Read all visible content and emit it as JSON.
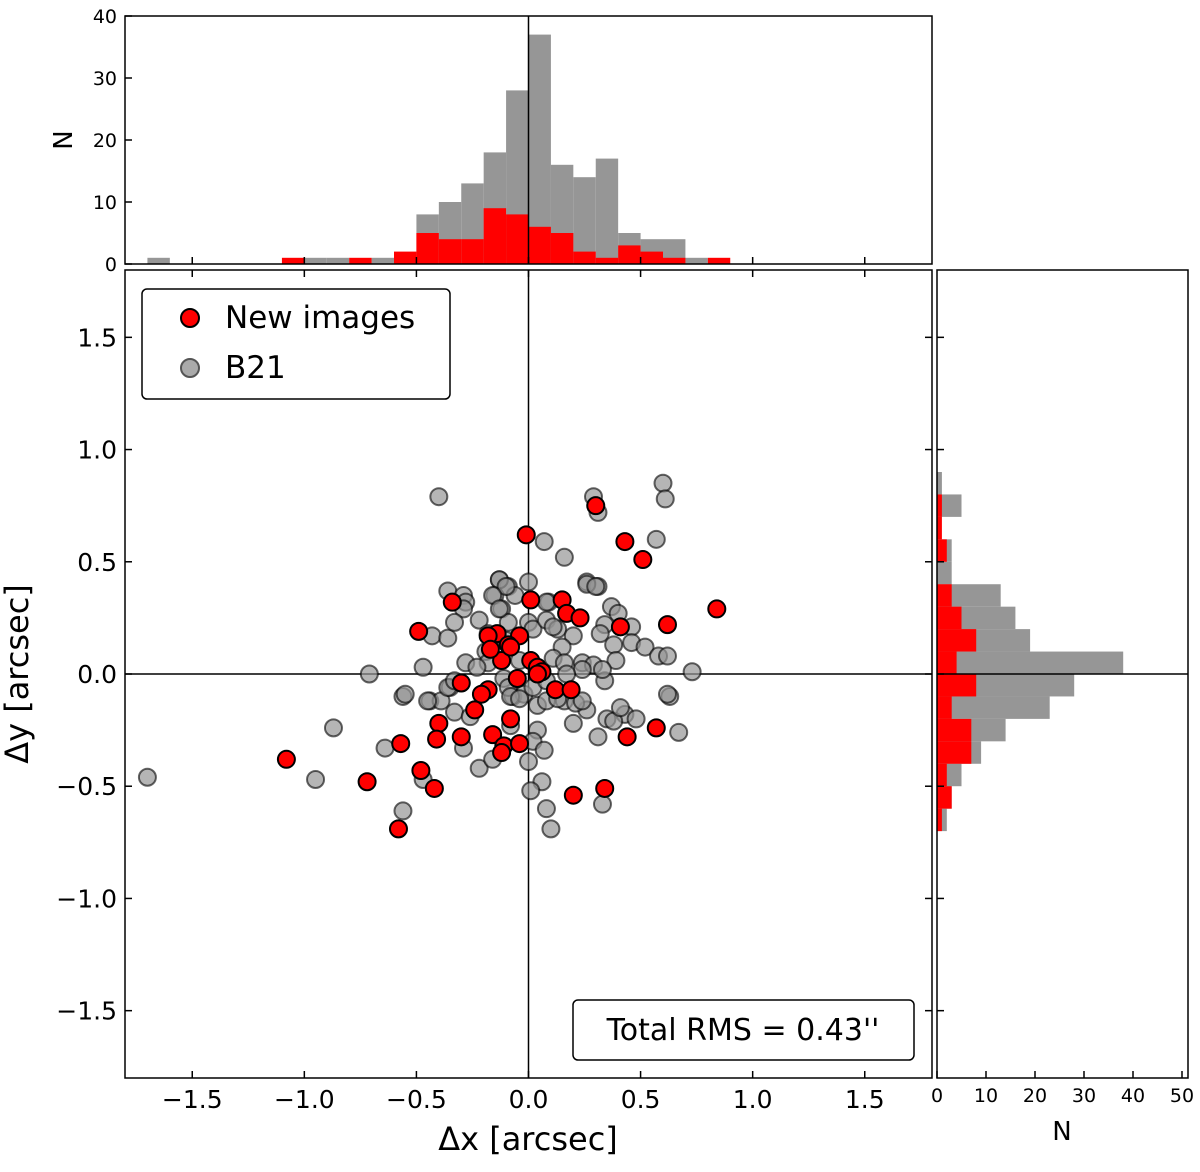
{
  "chart_data": [
    {
      "type": "scatter",
      "id": "main",
      "xlabel": "Δx [arcsec]",
      "ylabel": "Δy [arcsec]",
      "xlim": [
        -1.8,
        1.8
      ],
      "ylim": [
        -1.8,
        1.8
      ],
      "xticks": [
        -1.5,
        -1.0,
        -0.5,
        0.0,
        0.5,
        1.0,
        1.5
      ],
      "yticks": [
        -1.5,
        -1.0,
        -0.5,
        0.0,
        0.5,
        1.0,
        1.5
      ],
      "xtick_labels": [
        "−1.5",
        "−1.0",
        "−0.5",
        "0.0",
        "0.5",
        "1.0",
        "1.5"
      ],
      "ytick_labels": [
        "−1.5",
        "−1.0",
        "−0.5",
        "0.0",
        "0.5",
        "1.0",
        "1.5"
      ],
      "legend_position": "top-left",
      "annotation": "Total RMS = 0.43''",
      "series": [
        {
          "name": "B21",
          "color": "#999999",
          "points": [
            [
              -0.56,
              -0.1
            ],
            [
              -0.44,
              -0.12
            ],
            [
              -0.39,
              -0.12
            ],
            [
              -0.35,
              -0.06
            ],
            [
              -0.87,
              -0.24
            ],
            [
              -0.64,
              -0.33
            ],
            [
              -0.95,
              -0.47
            ],
            [
              -0.47,
              -0.47
            ],
            [
              -0.56,
              -0.61
            ],
            [
              -0.29,
              -0.33
            ],
            [
              -0.22,
              -0.42
            ],
            [
              -0.16,
              -0.38
            ],
            [
              -0.33,
              -0.17
            ],
            [
              -0.26,
              -0.19
            ],
            [
              -0.08,
              -0.23
            ],
            [
              -0.07,
              -0.1
            ],
            [
              -0.02,
              -0.09
            ],
            [
              0.04,
              -0.14
            ],
            [
              0.04,
              -0.25
            ],
            [
              0.02,
              -0.3
            ],
            [
              0.07,
              -0.34
            ],
            [
              0.0,
              -0.39
            ],
            [
              0.06,
              -0.48
            ],
            [
              0.01,
              -0.52
            ],
            [
              0.08,
              -0.6
            ],
            [
              0.1,
              -0.69
            ],
            [
              0.08,
              -0.12
            ],
            [
              0.2,
              -0.22
            ],
            [
              0.26,
              -0.16
            ],
            [
              0.31,
              -0.28
            ],
            [
              0.35,
              -0.2
            ],
            [
              0.43,
              -0.18
            ],
            [
              0.48,
              -0.2
            ],
            [
              0.38,
              -0.21
            ],
            [
              0.63,
              -0.1
            ],
            [
              0.67,
              -0.26
            ],
            [
              0.33,
              -0.58
            ],
            [
              0.34,
              -0.03
            ],
            [
              0.16,
              -0.12
            ],
            [
              0.21,
              -0.13
            ],
            [
              -0.36,
              0.37
            ],
            [
              -0.29,
              0.35
            ],
            [
              -0.28,
              0.32
            ],
            [
              -0.29,
              0.29
            ],
            [
              -0.43,
              0.17
            ],
            [
              -0.36,
              0.16
            ],
            [
              -0.33,
              0.23
            ],
            [
              -0.22,
              0.24
            ],
            [
              -0.13,
              0.42
            ],
            [
              -0.09,
              0.39
            ],
            [
              -0.15,
              0.35
            ],
            [
              -0.06,
              0.35
            ],
            [
              0.0,
              0.41
            ],
            [
              -0.12,
              0.29
            ],
            [
              -0.09,
              0.23
            ],
            [
              -0.18,
              0.18
            ],
            [
              0.0,
              0.23
            ],
            [
              0.02,
              0.2
            ],
            [
              0.08,
              0.24
            ],
            [
              0.09,
              0.32
            ],
            [
              0.13,
              0.2
            ],
            [
              0.2,
              0.17
            ],
            [
              0.26,
              0.41
            ],
            [
              0.31,
              0.39
            ],
            [
              0.37,
              0.3
            ],
            [
              0.4,
              0.27
            ],
            [
              0.34,
              0.22
            ],
            [
              0.46,
              0.21
            ],
            [
              0.32,
              0.18
            ],
            [
              0.38,
              0.13
            ],
            [
              0.46,
              0.14
            ],
            [
              0.52,
              0.12
            ],
            [
              0.58,
              0.08
            ],
            [
              0.62,
              0.08
            ],
            [
              0.39,
              0.06
            ],
            [
              -0.28,
              0.05
            ],
            [
              -0.19,
              0.1
            ],
            [
              -0.18,
              0.05
            ],
            [
              -0.23,
              0.03
            ],
            [
              0.15,
              0.12
            ],
            [
              0.11,
              0.07
            ],
            [
              0.16,
              0.05
            ],
            [
              0.24,
              0.05
            ],
            [
              0.29,
              0.04
            ],
            [
              0.33,
              0.02
            ],
            [
              0.24,
              0.02
            ],
            [
              0.17,
              0.0
            ],
            [
              -0.47,
              0.03
            ],
            [
              0.73,
              0.01
            ],
            [
              -0.55,
              -0.09
            ],
            [
              -0.45,
              -0.12
            ],
            [
              -0.36,
              -0.06
            ],
            [
              -0.33,
              -0.03
            ],
            [
              -0.11,
              -0.02
            ],
            [
              -0.09,
              -0.06
            ],
            [
              -0.08,
              -0.1
            ],
            [
              -0.04,
              -0.11
            ],
            [
              0.02,
              -0.06
            ],
            [
              0.08,
              -0.03
            ],
            [
              0.13,
              -0.11
            ],
            [
              0.24,
              -0.12
            ],
            [
              0.62,
              -0.09
            ],
            [
              0.41,
              -0.15
            ],
            [
              0.6,
              0.85
            ],
            [
              0.61,
              0.78
            ],
            [
              0.29,
              0.79
            ],
            [
              0.31,
              0.72
            ],
            [
              0.07,
              0.59
            ],
            [
              0.16,
              0.52
            ],
            [
              0.57,
              0.6
            ],
            [
              0.26,
              0.4
            ],
            [
              0.3,
              0.39
            ],
            [
              0.08,
              0.32
            ],
            [
              0.11,
              0.21
            ],
            [
              -0.4,
              0.79
            ],
            [
              -0.13,
              0.42
            ],
            [
              -0.1,
              0.39
            ],
            [
              -0.16,
              0.35
            ],
            [
              -0.13,
              0.29
            ],
            [
              -0.71,
              0.0
            ],
            [
              -1.7,
              -0.46
            ],
            [
              -0.1,
              0.15
            ],
            [
              -0.04,
              0.06
            ]
          ]
        },
        {
          "name": "New images",
          "color": "#ff0000",
          "points": [
            [
              -0.01,
              0.62
            ],
            [
              0.3,
              0.75
            ],
            [
              0.43,
              0.59
            ],
            [
              0.51,
              0.51
            ],
            [
              0.84,
              0.29
            ],
            [
              -0.34,
              0.32
            ],
            [
              -0.49,
              0.19
            ],
            [
              0.01,
              0.33
            ],
            [
              0.15,
              0.33
            ],
            [
              0.17,
              0.27
            ],
            [
              0.23,
              0.25
            ],
            [
              0.41,
              0.21
            ],
            [
              0.62,
              0.22
            ],
            [
              -0.14,
              0.18
            ],
            [
              -0.04,
              0.17
            ],
            [
              -0.09,
              0.13
            ],
            [
              -0.12,
              0.06
            ],
            [
              0.01,
              0.06
            ],
            [
              0.04,
              0.03
            ],
            [
              0.06,
              0.01
            ],
            [
              -0.05,
              -0.02
            ],
            [
              -0.3,
              -0.04
            ],
            [
              -0.18,
              -0.07
            ],
            [
              -0.21,
              -0.09
            ],
            [
              -0.24,
              -0.16
            ],
            [
              0.12,
              -0.07
            ],
            [
              0.19,
              -0.07
            ],
            [
              -0.08,
              -0.2
            ],
            [
              -0.4,
              -0.22
            ],
            [
              -0.16,
              -0.27
            ],
            [
              -0.3,
              -0.28
            ],
            [
              -0.41,
              -0.29
            ],
            [
              -0.11,
              -0.32
            ],
            [
              -0.04,
              -0.31
            ],
            [
              -0.12,
              -0.35
            ],
            [
              -0.57,
              -0.31
            ],
            [
              0.44,
              -0.28
            ],
            [
              0.57,
              -0.24
            ],
            [
              -1.08,
              -0.38
            ],
            [
              -0.72,
              -0.48
            ],
            [
              -0.48,
              -0.43
            ],
            [
              -0.42,
              -0.51
            ],
            [
              -0.58,
              -0.69
            ],
            [
              0.2,
              -0.54
            ],
            [
              0.34,
              -0.51
            ],
            [
              -0.18,
              0.17
            ],
            [
              -0.17,
              0.11
            ],
            [
              -0.08,
              0.12
            ],
            [
              0.04,
              0.0
            ]
          ]
        }
      ]
    },
    {
      "type": "bar",
      "id": "top-histogram",
      "orientation": "vertical",
      "ylabel": "N",
      "ylim": [
        0,
        40
      ],
      "yticks": [
        0,
        10,
        20,
        30,
        40
      ],
      "ytick_labels": [
        "0",
        "10",
        "20",
        "30",
        "40"
      ],
      "bin_width": 0.1,
      "series": [
        {
          "name": "B21",
          "color": "#969696",
          "bins": [
            [
              -1.7,
              1
            ],
            [
              -1.0,
              1
            ],
            [
              -0.9,
              1
            ],
            [
              -0.7,
              1
            ],
            [
              -0.5,
              8
            ],
            [
              -0.4,
              10
            ],
            [
              -0.3,
              13
            ],
            [
              -0.2,
              18
            ],
            [
              -0.1,
              28
            ],
            [
              0.0,
              37
            ],
            [
              0.1,
              16
            ],
            [
              0.2,
              14
            ],
            [
              0.3,
              17
            ],
            [
              0.4,
              5
            ],
            [
              0.5,
              4
            ],
            [
              0.6,
              4
            ],
            [
              0.7,
              1
            ]
          ]
        },
        {
          "name": "New images",
          "color": "#ff0000",
          "bins": [
            [
              -1.1,
              1
            ],
            [
              -0.8,
              1
            ],
            [
              -0.6,
              2
            ],
            [
              -0.5,
              5
            ],
            [
              -0.4,
              4
            ],
            [
              -0.3,
              4
            ],
            [
              -0.2,
              9
            ],
            [
              -0.1,
              8
            ],
            [
              0.0,
              6
            ],
            [
              0.1,
              5
            ],
            [
              0.2,
              2
            ],
            [
              0.3,
              1
            ],
            [
              0.4,
              3
            ],
            [
              0.5,
              2
            ],
            [
              0.6,
              1
            ],
            [
              0.8,
              1
            ]
          ]
        }
      ]
    },
    {
      "type": "bar",
      "id": "right-histogram",
      "orientation": "horizontal",
      "xlabel": "N",
      "xlim": [
        0,
        50
      ],
      "xticks": [
        0,
        10,
        20,
        30,
        40,
        50
      ],
      "xtick_labels": [
        "0",
        "10",
        "20",
        "30",
        "40",
        "50"
      ],
      "bin_width": 0.1,
      "series": [
        {
          "name": "B21",
          "color": "#969696",
          "bins": [
            [
              0.8,
              1
            ],
            [
              0.7,
              5
            ],
            [
              0.5,
              3
            ],
            [
              0.4,
              3
            ],
            [
              0.3,
              13
            ],
            [
              0.2,
              16
            ],
            [
              0.1,
              19
            ],
            [
              0.0,
              38
            ],
            [
              -0.1,
              28
            ],
            [
              -0.2,
              23
            ],
            [
              -0.3,
              14
            ],
            [
              -0.4,
              9
            ],
            [
              -0.5,
              5
            ],
            [
              -0.6,
              3
            ],
            [
              -0.7,
              2
            ]
          ]
        },
        {
          "name": "New images",
          "color": "#ff0000",
          "bins": [
            [
              0.7,
              1
            ],
            [
              0.6,
              1
            ],
            [
              0.5,
              2
            ],
            [
              0.3,
              3
            ],
            [
              0.2,
              5
            ],
            [
              0.1,
              8
            ],
            [
              0.0,
              4
            ],
            [
              -0.1,
              8
            ],
            [
              -0.2,
              3
            ],
            [
              -0.3,
              7
            ],
            [
              -0.4,
              7
            ],
            [
              -0.5,
              2
            ],
            [
              -0.6,
              3
            ],
            [
              -0.7,
              1
            ]
          ]
        }
      ]
    }
  ],
  "legend": {
    "items": [
      "New images",
      "B21"
    ]
  }
}
